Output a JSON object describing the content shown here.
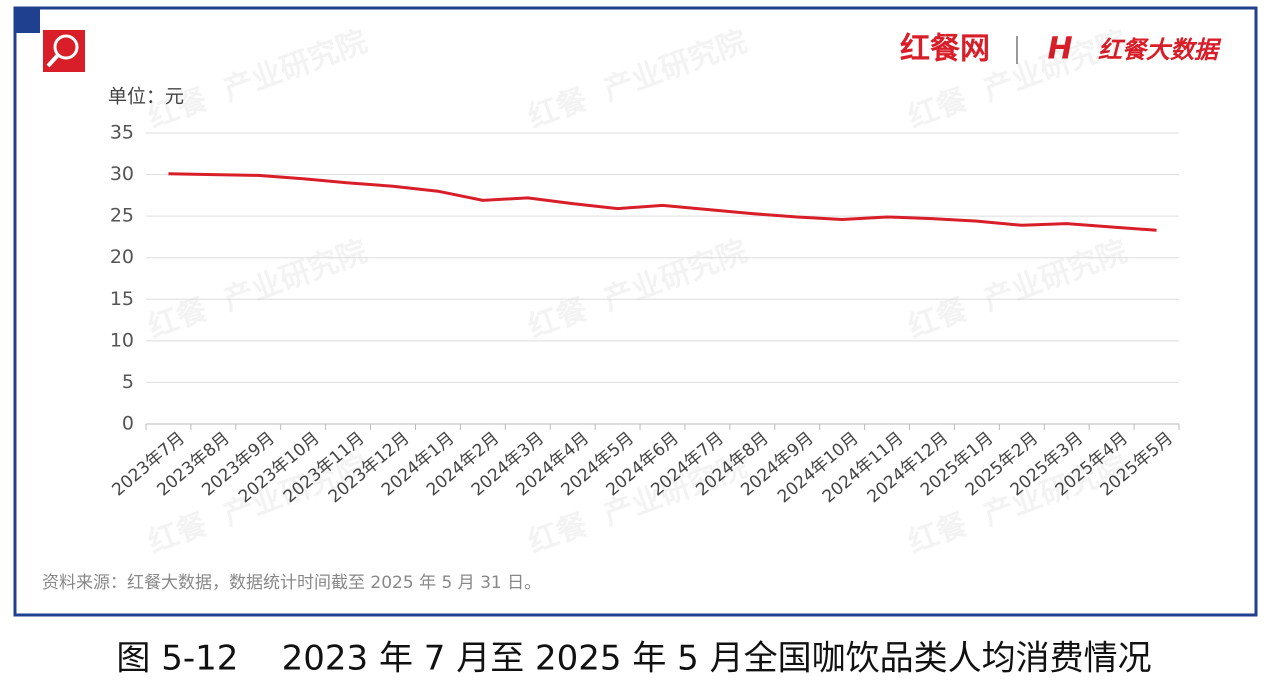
{
  "chart_data": {
    "type": "line",
    "unit_label": "单位：元",
    "source": "资料来源：红餐大数据，数据统计时间截至 2025 年 5 月 31 日。",
    "caption": "图 5-12    2023 年 7 月至 2025 年 5 月全国咖饮品类人均消费情况",
    "logo_left": "红餐网",
    "logo_right": "红餐大数据",
    "watermark_brand": "红餐",
    "watermark_text": "产业研究院",
    "categories": [
      "2023年7月",
      "2023年8月",
      "2023年9月",
      "2023年10月",
      "2023年11月",
      "2023年12月",
      "2024年1月",
      "2024年2月",
      "2024年3月",
      "2024年4月",
      "2024年5月",
      "2024年6月",
      "2024年7月",
      "2024年8月",
      "2024年9月",
      "2024年10月",
      "2024年11月",
      "2024年12月",
      "2025年1月",
      "2025年2月",
      "2025年3月",
      "2025年4月",
      "2025年5月"
    ],
    "values": [
      30.1,
      30.0,
      29.9,
      29.5,
      29.0,
      28.6,
      28.0,
      26.9,
      27.2,
      26.5,
      25.9,
      26.3,
      25.8,
      25.3,
      24.9,
      24.6,
      24.9,
      24.7,
      24.4,
      23.9,
      24.1,
      23.7,
      23.3
    ],
    "color": "#d81e28",
    "ylim": [
      0,
      35
    ],
    "yticks": [
      0,
      5,
      10,
      15,
      20,
      25,
      30,
      35
    ],
    "grid": true
  }
}
